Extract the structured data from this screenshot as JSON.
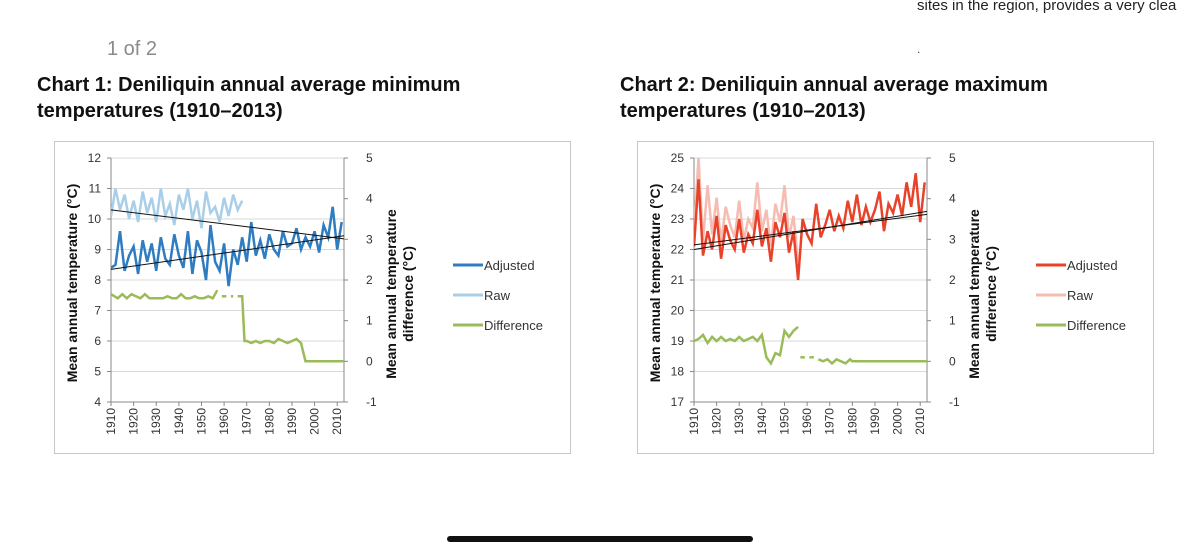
{
  "header": {
    "snippet": "sites in the region, provides a very clea",
    "dot": "."
  },
  "page_indicator": "1 of 2",
  "chart_data": [
    {
      "type": "line",
      "title": "Chart 1: Deniliquin annual average minimum temperatures (1910–2013)",
      "ylabel": "Mean annual temperature (°C)",
      "y2label": "Mean annual temperature difference (°C)",
      "xlabel": "",
      "ylim": [
        4,
        12
      ],
      "y_ticks": [
        4,
        5,
        6,
        7,
        8,
        9,
        10,
        11,
        12
      ],
      "y2lim": [
        -1,
        5
      ],
      "y2_ticks": [
        -1,
        0,
        1,
        2,
        3,
        4,
        5
      ],
      "xlim": [
        1910,
        2013
      ],
      "x_ticks": [
        "1910",
        "1920",
        "1930",
        "1940",
        "1950",
        "1960",
        "1970",
        "1980",
        "1990",
        "2000",
        "2010"
      ],
      "legend_position": "right",
      "grid": true,
      "colors": {
        "adjusted": "#2f7cc1",
        "raw": "#a9cfe8",
        "difference": "#9bbb59",
        "trend": "#111111"
      },
      "series": [
        {
          "name": "Adjusted",
          "axis": "left",
          "x": [
            1910,
            1912,
            1914,
            1916,
            1918,
            1920,
            1922,
            1924,
            1926,
            1928,
            1930,
            1932,
            1934,
            1936,
            1938,
            1940,
            1942,
            1944,
            1946,
            1948,
            1950,
            1952,
            1954,
            1956,
            1958,
            1960,
            1962,
            1964,
            1966,
            1968,
            1970,
            1972,
            1974,
            1976,
            1978,
            1980,
            1982,
            1984,
            1986,
            1988,
            1990,
            1992,
            1994,
            1996,
            1998,
            2000,
            2002,
            2004,
            2006,
            2008,
            2010,
            2012
          ],
          "y": [
            8.4,
            8.5,
            9.6,
            8.3,
            8.8,
            9.1,
            8.2,
            9.3,
            8.6,
            9.2,
            8.3,
            9.4,
            8.7,
            8.5,
            9.5,
            8.8,
            8.4,
            9.6,
            8.2,
            9.3,
            8.9,
            8.0,
            9.8,
            8.6,
            8.3,
            9.2,
            7.8,
            9.0,
            8.5,
            9.4,
            8.6,
            9.9,
            8.8,
            9.3,
            8.7,
            9.5,
            9.0,
            8.8,
            9.6,
            9.1,
            9.2,
            9.7,
            9.0,
            9.4,
            9.1,
            9.6,
            8.9,
            9.8,
            9.4,
            10.4,
            9.0,
            9.9
          ]
        },
        {
          "name": "Raw",
          "axis": "left",
          "x": [
            1910,
            1912,
            1914,
            1916,
            1918,
            1920,
            1922,
            1924,
            1926,
            1928,
            1930,
            1932,
            1934,
            1936,
            1938,
            1940,
            1942,
            1944,
            1946,
            1948,
            1950,
            1952,
            1954,
            1956,
            1958,
            1960,
            1962,
            1964,
            1966,
            1968
          ],
          "y": [
            10.1,
            11.0,
            10.3,
            10.8,
            10.0,
            10.6,
            9.9,
            10.9,
            10.2,
            10.7,
            9.9,
            11.0,
            10.1,
            10.5,
            9.8,
            10.8,
            10.3,
            11.0,
            10.0,
            10.6,
            9.7,
            10.9,
            10.2,
            10.4,
            9.9,
            10.7,
            10.1,
            10.8,
            10.3,
            10.6
          ]
        },
        {
          "name": "Difference",
          "axis": "right",
          "segments": [
            {
              "x": [
                1910,
                1913,
                1915,
                1917,
                1919,
                1921,
                1923,
                1925,
                1927,
                1929,
                1931,
                1933,
                1935,
                1937,
                1939,
                1941,
                1943,
                1945,
                1947,
                1949,
                1951,
                1953,
                1955,
                1957
              ],
              "y": [
                1.65,
                1.55,
                1.65,
                1.55,
                1.65,
                1.6,
                1.55,
                1.65,
                1.55,
                1.55,
                1.55,
                1.55,
                1.6,
                1.55,
                1.55,
                1.65,
                1.55,
                1.55,
                1.6,
                1.55,
                1.55,
                1.6,
                1.55,
                1.75
              ]
            },
            {
              "x": [
                1959,
                1961
              ],
              "y": [
                1.6,
                1.6
              ]
            },
            {
              "x": [
                1963,
                1964
              ],
              "y": [
                1.6,
                1.6
              ]
            },
            {
              "x": [
                1966,
                1968,
                1969,
                1970,
                1972,
                1974,
                1976,
                1978,
                1980,
                1982,
                1984,
                1986,
                1988,
                1990,
                1992,
                1994,
                1996,
                1998,
                2000,
                2005,
                2010,
                2013
              ],
              "y": [
                1.6,
                1.6,
                0.5,
                0.5,
                0.45,
                0.5,
                0.45,
                0.5,
                0.5,
                0.45,
                0.55,
                0.5,
                0.45,
                0.5,
                0.55,
                0.45,
                0.0,
                0.0,
                0.0,
                0.0,
                0.0,
                0.0
              ]
            }
          ]
        },
        {
          "name": "",
          "axis": "left",
          "role": "trend",
          "x": [
            1910,
            2013
          ],
          "y": [
            10.3,
            9.35
          ]
        },
        {
          "name": "",
          "axis": "left",
          "role": "trend",
          "x": [
            1910,
            2013
          ],
          "y": [
            8.35,
            9.45
          ]
        }
      ]
    },
    {
      "type": "line",
      "title": "Chart 2: Deniliquin annual average maximum temperatures (1910–2013)",
      "ylabel": "Mean annual temperature (°C)",
      "y2label": "Mean annual temperature difference (°C)",
      "xlabel": "",
      "ylim": [
        17,
        25
      ],
      "y_ticks": [
        17,
        18,
        19,
        20,
        21,
        22,
        23,
        24,
        25
      ],
      "y2lim": [
        -1,
        5
      ],
      "y2_ticks": [
        -1,
        0,
        1,
        2,
        3,
        4,
        5
      ],
      "xlim": [
        1910,
        2013
      ],
      "x_ticks": [
        "1910",
        "1920",
        "1930",
        "1940",
        "1950",
        "1960",
        "1970",
        "1980",
        "1990",
        "2000",
        "2010"
      ],
      "legend_position": "right",
      "grid": true,
      "colors": {
        "adjusted": "#e8432a",
        "raw": "#f6bcb1",
        "difference": "#9bbb59",
        "trend": "#111111"
      },
      "series": [
        {
          "name": "Adjusted",
          "axis": "left",
          "x": [
            1910,
            1912,
            1914,
            1916,
            1918,
            1920,
            1922,
            1924,
            1926,
            1928,
            1930,
            1932,
            1934,
            1936,
            1938,
            1940,
            1942,
            1944,
            1946,
            1948,
            1950,
            1952,
            1954,
            1956,
            1958,
            1960,
            1962,
            1964,
            1966,
            1968,
            1970,
            1972,
            1974,
            1976,
            1978,
            1980,
            1982,
            1984,
            1986,
            1988,
            1990,
            1992,
            1994,
            1996,
            1998,
            2000,
            2002,
            2004,
            2006,
            2008,
            2010,
            2012
          ],
          "y": [
            22.1,
            24.3,
            21.8,
            22.6,
            22.0,
            23.1,
            21.7,
            22.8,
            22.3,
            22.0,
            23.0,
            21.9,
            22.5,
            22.2,
            23.3,
            22.1,
            22.7,
            21.6,
            22.9,
            22.4,
            23.2,
            21.9,
            22.6,
            21.0,
            23.0,
            22.5,
            22.2,
            23.5,
            22.4,
            22.8,
            23.3,
            22.6,
            23.1,
            22.7,
            23.6,
            22.9,
            23.8,
            22.8,
            23.4,
            22.9,
            23.3,
            23.9,
            22.6,
            23.5,
            23.2,
            23.8,
            23.1,
            24.2,
            23.4,
            24.5,
            22.9,
            24.2
          ]
        },
        {
          "name": "Raw",
          "axis": "left",
          "x": [
            1910,
            1912,
            1914,
            1916,
            1918,
            1920,
            1922,
            1924,
            1926,
            1928,
            1930,
            1932,
            1934,
            1936,
            1938,
            1940,
            1942,
            1944,
            1946,
            1948,
            1950,
            1952,
            1954,
            1956
          ],
          "y": [
            22.6,
            25.0,
            22.3,
            24.1,
            22.5,
            23.7,
            22.2,
            23.4,
            22.8,
            22.4,
            23.6,
            22.3,
            23.0,
            22.7,
            24.2,
            22.6,
            23.3,
            22.1,
            23.5,
            22.9,
            24.1,
            22.4,
            23.1,
            21.6
          ]
        },
        {
          "name": "Difference",
          "axis": "right",
          "segments": [
            {
              "x": [
                1910,
                1912,
                1914,
                1916,
                1918,
                1920,
                1922,
                1924,
                1926,
                1928,
                1930,
                1932,
                1934,
                1936,
                1938,
                1940,
                1942,
                1944,
                1946,
                1948,
                1950,
                1952,
                1954,
                1956
              ],
              "y": [
                0.5,
                0.55,
                0.65,
                0.45,
                0.6,
                0.5,
                0.6,
                0.5,
                0.55,
                0.5,
                0.6,
                0.5,
                0.55,
                0.6,
                0.5,
                0.65,
                0.1,
                -0.05,
                0.2,
                0.15,
                0.75,
                0.6,
                0.75,
                0.85
              ]
            },
            {
              "x": [
                1957,
                1959
              ],
              "y": [
                0.1,
                0.1
              ]
            },
            {
              "x": [
                1961,
                1963
              ],
              "y": [
                0.1,
                0.1
              ]
            },
            {
              "x": [
                1965,
                1967,
                1969,
                1971,
                1973,
                1975,
                1977,
                1979,
                1980,
                1985,
                1990,
                1995,
                2000,
                2005,
                2010,
                2013
              ],
              "y": [
                0.05,
                0.0,
                0.05,
                -0.05,
                0.05,
                0.0,
                -0.05,
                0.05,
                0.0,
                0.0,
                0.0,
                0.0,
                0.0,
                0.0,
                0.0,
                0.0
              ]
            }
          ]
        },
        {
          "name": "",
          "axis": "left",
          "role": "trend",
          "x": [
            1910,
            2013
          ],
          "y": [
            22.15,
            23.15
          ]
        },
        {
          "name": "",
          "axis": "left",
          "role": "trend",
          "x": [
            1910,
            2013
          ],
          "y": [
            22.0,
            23.25
          ]
        }
      ]
    }
  ]
}
